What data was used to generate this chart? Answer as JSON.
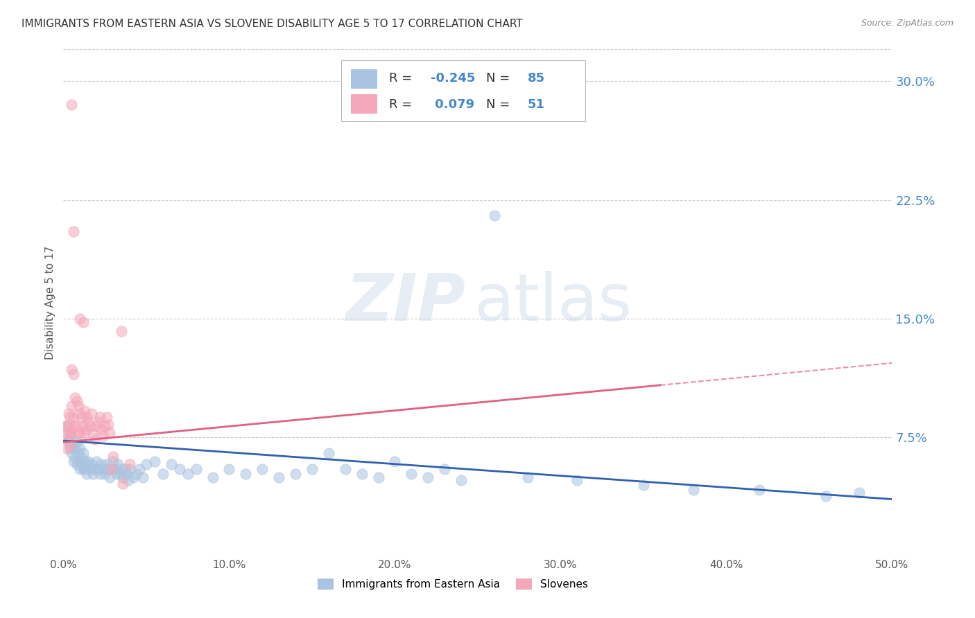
{
  "title": "IMMIGRANTS FROM EASTERN ASIA VS SLOVENE DISABILITY AGE 5 TO 17 CORRELATION CHART",
  "source": "Source: ZipAtlas.com",
  "ylabel": "Disability Age 5 to 17",
  "legend_label1": "Immigrants from Eastern Asia",
  "legend_label2": "Slovenes",
  "R1": -0.245,
  "N1": 85,
  "R2": 0.079,
  "N2": 51,
  "xlim": [
    0.0,
    0.5
  ],
  "ylim": [
    0.0,
    0.32
  ],
  "xticks": [
    0.0,
    0.1,
    0.2,
    0.3,
    0.4,
    0.5
  ],
  "xtick_labels": [
    "0.0%",
    "10.0%",
    "20.0%",
    "30.0%",
    "40.0%",
    "50.0%"
  ],
  "yticks_right": [
    0.075,
    0.15,
    0.225,
    0.3
  ],
  "ytick_labels_right": [
    "7.5%",
    "15.0%",
    "22.5%",
    "30.0%"
  ],
  "color_blue": "#a8c4e0",
  "color_pink": "#f4a7b9",
  "color_blue_line": "#3060b0",
  "color_pink_line": "#e06080",
  "color_axis_labels": "#4488cc",
  "scatter_alpha": 0.55,
  "scatter_size": 120,
  "blue_scatter": [
    [
      0.002,
      0.082
    ],
    [
      0.003,
      0.073
    ],
    [
      0.004,
      0.078
    ],
    [
      0.004,
      0.068
    ],
    [
      0.005,
      0.075
    ],
    [
      0.005,
      0.065
    ],
    [
      0.006,
      0.07
    ],
    [
      0.006,
      0.06
    ],
    [
      0.007,
      0.068
    ],
    [
      0.007,
      0.062
    ],
    [
      0.008,
      0.072
    ],
    [
      0.008,
      0.058
    ],
    [
      0.009,
      0.065
    ],
    [
      0.009,
      0.06
    ],
    [
      0.01,
      0.068
    ],
    [
      0.01,
      0.055
    ],
    [
      0.011,
      0.062
    ],
    [
      0.011,
      0.058
    ],
    [
      0.012,
      0.065
    ],
    [
      0.012,
      0.055
    ],
    [
      0.013,
      0.06
    ],
    [
      0.013,
      0.055
    ],
    [
      0.014,
      0.058
    ],
    [
      0.014,
      0.052
    ],
    [
      0.015,
      0.06
    ],
    [
      0.016,
      0.055
    ],
    [
      0.017,
      0.058
    ],
    [
      0.018,
      0.052
    ],
    [
      0.019,
      0.055
    ],
    [
      0.02,
      0.06
    ],
    [
      0.021,
      0.055
    ],
    [
      0.022,
      0.052
    ],
    [
      0.023,
      0.058
    ],
    [
      0.024,
      0.055
    ],
    [
      0.025,
      0.052
    ],
    [
      0.026,
      0.058
    ],
    [
      0.027,
      0.055
    ],
    [
      0.028,
      0.05
    ],
    [
      0.029,
      0.055
    ],
    [
      0.03,
      0.06
    ],
    [
      0.031,
      0.055
    ],
    [
      0.032,
      0.052
    ],
    [
      0.033,
      0.058
    ],
    [
      0.034,
      0.052
    ],
    [
      0.035,
      0.055
    ],
    [
      0.036,
      0.05
    ],
    [
      0.037,
      0.055
    ],
    [
      0.038,
      0.052
    ],
    [
      0.039,
      0.048
    ],
    [
      0.04,
      0.055
    ],
    [
      0.042,
      0.05
    ],
    [
      0.044,
      0.052
    ],
    [
      0.046,
      0.055
    ],
    [
      0.048,
      0.05
    ],
    [
      0.05,
      0.058
    ],
    [
      0.055,
      0.06
    ],
    [
      0.06,
      0.052
    ],
    [
      0.065,
      0.058
    ],
    [
      0.07,
      0.055
    ],
    [
      0.075,
      0.052
    ],
    [
      0.08,
      0.055
    ],
    [
      0.09,
      0.05
    ],
    [
      0.1,
      0.055
    ],
    [
      0.11,
      0.052
    ],
    [
      0.12,
      0.055
    ],
    [
      0.13,
      0.05
    ],
    [
      0.14,
      0.052
    ],
    [
      0.15,
      0.055
    ],
    [
      0.16,
      0.065
    ],
    [
      0.17,
      0.055
    ],
    [
      0.18,
      0.052
    ],
    [
      0.19,
      0.05
    ],
    [
      0.2,
      0.06
    ],
    [
      0.21,
      0.052
    ],
    [
      0.22,
      0.05
    ],
    [
      0.23,
      0.055
    ],
    [
      0.24,
      0.048
    ],
    [
      0.26,
      0.215
    ],
    [
      0.28,
      0.05
    ],
    [
      0.31,
      0.048
    ],
    [
      0.35,
      0.045
    ],
    [
      0.38,
      0.042
    ],
    [
      0.42,
      0.042
    ],
    [
      0.46,
      0.038
    ],
    [
      0.48,
      0.04
    ]
  ],
  "pink_scatter": [
    [
      0.001,
      0.082
    ],
    [
      0.002,
      0.078
    ],
    [
      0.002,
      0.068
    ],
    [
      0.003,
      0.09
    ],
    [
      0.003,
      0.083
    ],
    [
      0.003,
      0.076
    ],
    [
      0.004,
      0.088
    ],
    [
      0.004,
      0.078
    ],
    [
      0.004,
      0.07
    ],
    [
      0.005,
      0.118
    ],
    [
      0.005,
      0.095
    ],
    [
      0.005,
      0.08
    ],
    [
      0.005,
      0.285
    ],
    [
      0.006,
      0.205
    ],
    [
      0.006,
      0.115
    ],
    [
      0.006,
      0.088
    ],
    [
      0.007,
      0.1
    ],
    [
      0.007,
      0.082
    ],
    [
      0.008,
      0.098
    ],
    [
      0.008,
      0.082
    ],
    [
      0.009,
      0.095
    ],
    [
      0.009,
      0.078
    ],
    [
      0.01,
      0.09
    ],
    [
      0.01,
      0.15
    ],
    [
      0.01,
      0.078
    ],
    [
      0.011,
      0.088
    ],
    [
      0.012,
      0.148
    ],
    [
      0.012,
      0.082
    ],
    [
      0.013,
      0.092
    ],
    [
      0.013,
      0.078
    ],
    [
      0.014,
      0.088
    ],
    [
      0.014,
      0.08
    ],
    [
      0.015,
      0.085
    ],
    [
      0.016,
      0.082
    ],
    [
      0.017,
      0.09
    ],
    [
      0.018,
      0.078
    ],
    [
      0.019,
      0.074
    ],
    [
      0.02,
      0.082
    ],
    [
      0.021,
      0.085
    ],
    [
      0.022,
      0.088
    ],
    [
      0.023,
      0.08
    ],
    [
      0.024,
      0.076
    ],
    [
      0.025,
      0.082
    ],
    [
      0.026,
      0.088
    ],
    [
      0.027,
      0.083
    ],
    [
      0.028,
      0.078
    ],
    [
      0.029,
      0.055
    ],
    [
      0.03,
      0.063
    ],
    [
      0.035,
      0.142
    ],
    [
      0.036,
      0.046
    ],
    [
      0.04,
      0.058
    ]
  ],
  "blue_trend": {
    "x_start": 0.0,
    "y_start": 0.073,
    "x_end": 0.5,
    "y_end": 0.036
  },
  "pink_trend_solid": {
    "x_start": 0.0,
    "y_start": 0.072,
    "x_end": 0.36,
    "y_end": 0.108
  },
  "pink_trend_dashed": {
    "x_start": 0.36,
    "y_start": 0.108,
    "x_end": 0.5,
    "y_end": 0.122
  },
  "grid_color": "#cccccc",
  "background_color": "#ffffff",
  "watermark_zip": "ZIP",
  "watermark_atlas": "atlas",
  "watermark_color": "#c8d8e8",
  "watermark_alpha": 0.45
}
